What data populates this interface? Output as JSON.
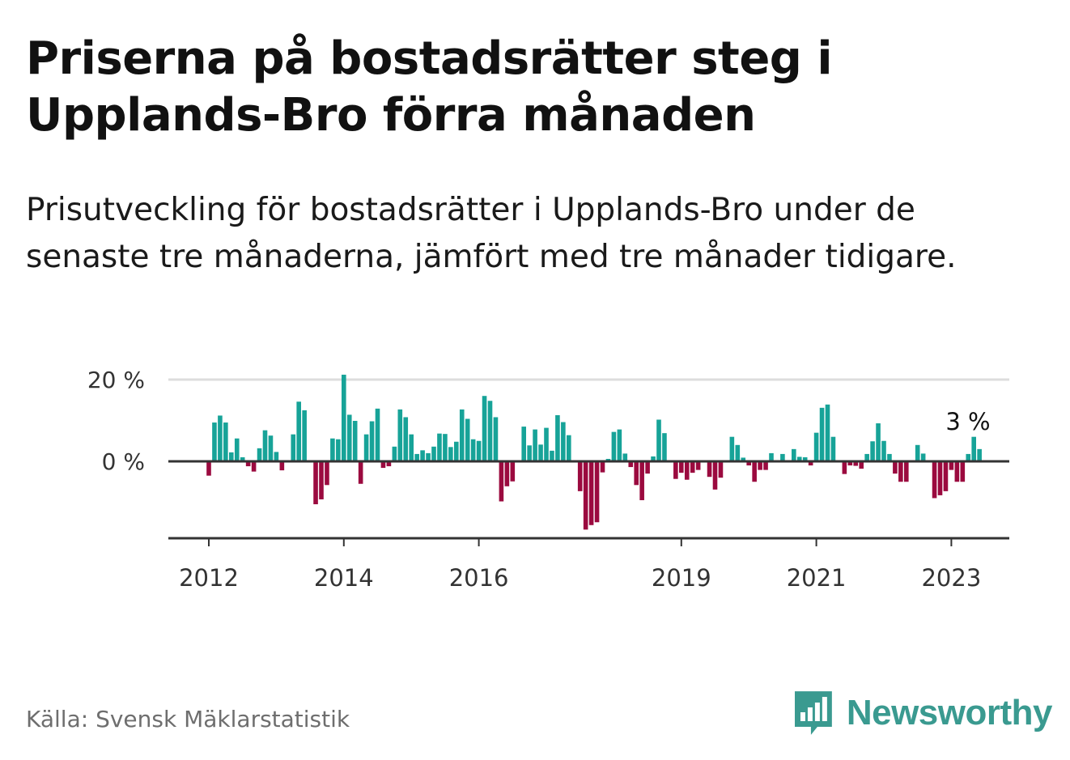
{
  "header": {
    "title": "Priserna på bostadsrätter steg i Upplands-Bro förra månaden",
    "subtitle": "Prisutveckling för bostadsrätter i Upplands-Bro under de senaste tre månaderna, jämfört med tre månader tidigare."
  },
  "source": "Källa: Svensk Mäklarstatistik",
  "brand": {
    "name": "Newsworthy",
    "color": "#3a9a90",
    "logo": "chart-bubble-icon"
  },
  "colors": {
    "positive": "#17a398",
    "negative": "#9b0a3f",
    "grid": "#dddddd",
    "axis": "#333333"
  },
  "chart_data": {
    "type": "bar",
    "title": "Priserna på bostadsrätter steg i Upplands-Bro förra månaden",
    "xlabel": "",
    "ylabel": "",
    "ylim": [
      -18,
      22
    ],
    "grid": true,
    "y_ticks": [
      {
        "value": 0,
        "label": "0 %"
      },
      {
        "value": 20,
        "label": "20 %"
      }
    ],
    "x_ticks": [
      {
        "index": 0,
        "label": "2012"
      },
      {
        "index": 24,
        "label": "2014"
      },
      {
        "index": 48,
        "label": "2016"
      },
      {
        "index": 84,
        "label": "2019"
      },
      {
        "index": 108,
        "label": "2021"
      },
      {
        "index": 132,
        "label": "2023"
      }
    ],
    "start": "2012-01",
    "last_value_label": "3 %",
    "values": [
      -3.5,
      9.5,
      11.2,
      9.5,
      2.2,
      5.6,
      1.0,
      -1.2,
      -2.5,
      3.2,
      7.6,
      6.3,
      2.3,
      -2.2,
      0,
      6.6,
      14.6,
      12.5,
      0,
      -10.5,
      -9.3,
      -5.8,
      5.6,
      5.4,
      21.2,
      11.4,
      9.9,
      -5.5,
      6.6,
      9.8,
      12.9,
      -1.6,
      -1.2,
      3.6,
      12.7,
      10.8,
      6.6,
      1.8,
      2.7,
      2.0,
      3.6,
      6.8,
      6.7,
      3.5,
      4.8,
      12.7,
      10.4,
      5.4,
      5.0,
      16.0,
      14.8,
      10.8,
      -9.8,
      -6.1,
      -4.9,
      0,
      8.5,
      3.9,
      7.8,
      4.1,
      8.2,
      2.6,
      11.3,
      9.6,
      6.4,
      0,
      -7.3,
      -16.7,
      -15.6,
      -14.9,
      -2.7,
      0.6,
      7.2,
      7.8,
      1.9,
      -1.4,
      -5.8,
      -9.5,
      -3.0,
      1.2,
      10.2,
      6.9,
      0,
      -4.3,
      -2.8,
      -4.5,
      -2.8,
      -2.1,
      0,
      -3.8,
      -6.9,
      -4.0,
      0,
      6.0,
      4.0,
      0.9,
      -1.0,
      -5.0,
      -2.1,
      -2.1,
      2.0,
      0,
      1.8,
      0,
      3.0,
      1.1,
      1.0,
      -1.0,
      7.0,
      13.1,
      13.9,
      6.0,
      0,
      -3.1,
      -1.0,
      -1.1,
      -1.8,
      1.8,
      4.9,
      9.3,
      5.0,
      1.8,
      -3.0,
      -5.0,
      -5.0,
      0,
      4.0,
      1.9,
      0,
      -9.0,
      -8.3,
      -7.3,
      -2.1,
      -5.0,
      -5.0,
      1.8,
      6.0,
      3.0
    ]
  }
}
